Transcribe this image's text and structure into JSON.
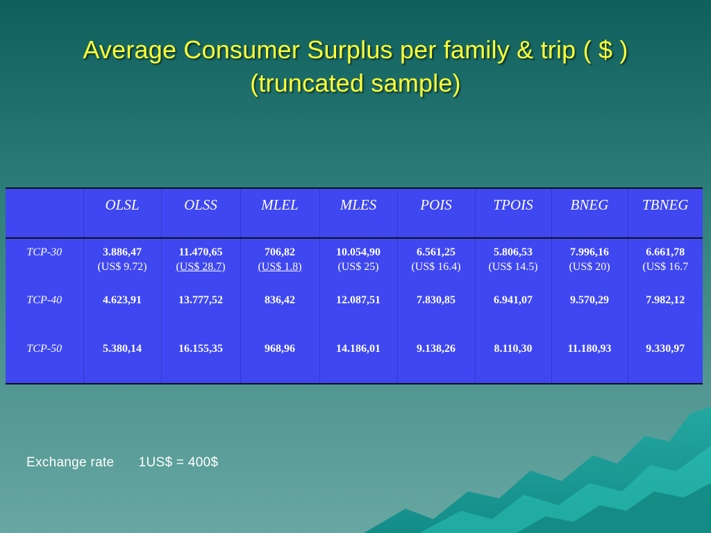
{
  "slide": {
    "title_line1": "Average Consumer Surplus per family & trip ( $ )",
    "title_line2": "(truncated sample)"
  },
  "table": {
    "headers": [
      "",
      "OLSL",
      "OLSS",
      "MLEL",
      "MLES",
      "POIS",
      "TPOIS",
      "BNEG",
      "TBNEG"
    ],
    "rows": [
      {
        "label": "TCP-30",
        "values": [
          {
            "value": "3.886,47",
            "sub": "(US$ 9.72)"
          },
          {
            "value": "11.470,65",
            "sub": "(US$ 28.7)"
          },
          {
            "value": "706,82",
            "sub": "(US$ 1.8)"
          },
          {
            "value": "10.054,90",
            "sub": "(US$ 25)"
          },
          {
            "value": "6.561,25",
            "sub": "(US$ 16.4)"
          },
          {
            "value": "5.806,53",
            "sub": "(US$ 14.5)"
          },
          {
            "value": "7.996,16",
            "sub": "(US$ 20)"
          },
          {
            "value": "6.661,78",
            "sub": "(US$ 16.7"
          }
        ]
      },
      {
        "label": "TCP-40",
        "values": [
          {
            "value": "4.623,91"
          },
          {
            "value": "13.777,52"
          },
          {
            "value": "836,42"
          },
          {
            "value": "12.087,51"
          },
          {
            "value": "7.830,85"
          },
          {
            "value": "6.941,07"
          },
          {
            "value": "9.570,29"
          },
          {
            "value": "7.982,12"
          }
        ]
      },
      {
        "label": "TCP-50",
        "values": [
          {
            "value": "5.380,14"
          },
          {
            "value": "16.155,35"
          },
          {
            "value": "968,96"
          },
          {
            "value": "14.186,01"
          },
          {
            "value": "9.138,26"
          },
          {
            "value": "8.110,30"
          },
          {
            "value": "11.180,93"
          },
          {
            "value": "9.330,97"
          }
        ]
      }
    ]
  },
  "footer": {
    "exchange_rate_label": "Exchange rate",
    "exchange_rate_value": "1US$ = 400$"
  },
  "colors": {
    "title": "#ffff33",
    "table_bg": "#3f47f0",
    "text": "#ffffff",
    "background_top": "#0f5f5c",
    "background_bottom": "#67a7a2"
  }
}
